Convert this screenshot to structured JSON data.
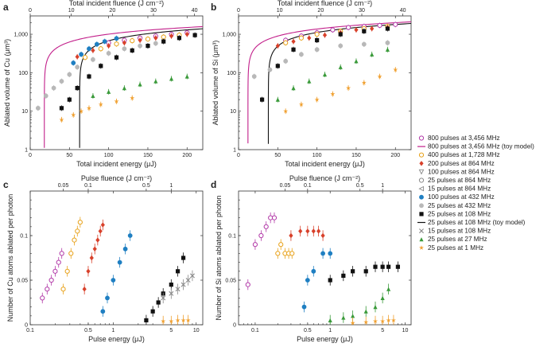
{
  "chart_data": [
    {
      "panel": "a",
      "type": "scatter",
      "xlabel": "Total incident energy (μJ)",
      "ylabel": "Ablated volume of Cu (μm³)",
      "top_xlabel": "Total incident fluence (J cm⁻²)",
      "x_scale": "linear",
      "y_scale": "log",
      "xlim": [
        0,
        220
      ],
      "ylim": [
        1,
        3000
      ],
      "top_xlim": [
        0,
        42
      ],
      "x_ticks": [
        0,
        50,
        100,
        150,
        200
      ],
      "y_ticks": [
        1,
        10,
        100,
        1000
      ],
      "y_tick_labels": [
        "1",
        "10",
        "100",
        "1,000"
      ],
      "top_ticks": [
        0,
        10,
        20,
        30,
        40
      ],
      "series": [
        {
          "name": "800 pulses at 3,456 MHz",
          "x": [
            100,
            120,
            140,
            160,
            180,
            200
          ],
          "y": [
            600,
            700,
            800,
            900,
            1000,
            1100
          ]
        },
        {
          "name": "400 pulses at 1,728 MHz",
          "x": [
            70,
            90,
            110,
            130,
            150,
            170,
            190
          ],
          "y": [
            250,
            420,
            560,
            680,
            750,
            850,
            950
          ]
        },
        {
          "name": "200 pulses at 864 MHz",
          "x": [
            60,
            80,
            100,
            120,
            140,
            160,
            180,
            200
          ],
          "y": [
            260,
            380,
            500,
            600,
            700,
            800,
            900,
            1000
          ]
        },
        {
          "name": "100 pulses at 432 MHz",
          "x": [
            55,
            65,
            75,
            85,
            95,
            110
          ],
          "y": [
            180,
            300,
            420,
            550,
            650,
            780
          ]
        },
        {
          "name": "25 pulses at 108 MHz",
          "x": [
            40,
            50,
            60,
            75,
            90,
            110,
            130,
            150,
            170,
            190,
            210
          ],
          "y": [
            12,
            20,
            40,
            80,
            150,
            250,
            380,
            500,
            650,
            800,
            950
          ]
        },
        {
          "name": "25 pulses at 432 MHz",
          "x": [
            10,
            20,
            30,
            40,
            50,
            60,
            80,
            100,
            120,
            140,
            160
          ],
          "y": [
            12,
            25,
            40,
            60,
            90,
            140,
            220,
            320,
            420,
            500,
            580
          ]
        },
        {
          "name": "25 pulses at 27 MHz",
          "x": [
            80,
            100,
            120,
            140,
            160,
            180,
            200
          ],
          "y": [
            25,
            32,
            40,
            50,
            60,
            70,
            80
          ]
        },
        {
          "name": "25 pulses at 1 MHz",
          "x": [
            40,
            55,
            65,
            75,
            90,
            110,
            130
          ],
          "y": [
            6,
            8,
            10,
            12,
            15,
            18,
            22
          ]
        }
      ],
      "models": [
        {
          "name": "800 pulses at 3,456 MHz (toy model)",
          "threshold": 18,
          "ref_x": 200,
          "ref_y": 1500
        },
        {
          "name": "25 pulses at 108 MHz (toy model)",
          "threshold": 63,
          "ref_x": 200,
          "ref_y": 1300
        }
      ]
    },
    {
      "panel": "b",
      "type": "scatter",
      "xlabel": "Total incident energy (μJ)",
      "ylabel": "Ablated volume of Si (μm³)",
      "top_xlabel": "Total incident fluence (J cm⁻²)",
      "x_scale": "linear",
      "y_scale": "log",
      "xlim": [
        0,
        220
      ],
      "ylim": [
        1,
        3000
      ],
      "top_xlim": [
        0,
        42
      ],
      "x_ticks": [
        0,
        50,
        100,
        150,
        200
      ],
      "y_ticks": [
        1,
        10,
        100,
        1000
      ],
      "y_tick_labels": [
        "1",
        "10",
        "100",
        "1,000"
      ],
      "top_ticks": [
        0,
        10,
        20,
        30,
        40
      ],
      "series": [
        {
          "name": "800 pulses at 3,456 MHz",
          "x": [
            60,
            80,
            100,
            120,
            140,
            160,
            180,
            200
          ],
          "y": [
            700,
            900,
            1100,
            1300,
            1500,
            1600,
            1700,
            1800
          ]
        },
        {
          "name": "400 pulses at 1,728 MHz",
          "x": [
            60,
            80,
            100,
            130,
            160,
            190
          ],
          "y": [
            600,
            800,
            1000,
            1200,
            1400,
            1600
          ]
        },
        {
          "name": "200 pulses at 864 MHz",
          "x": [
            50,
            70,
            90,
            110,
            130,
            150,
            170,
            190
          ],
          "y": [
            500,
            650,
            800,
            950,
            1100,
            1300,
            1400,
            1500
          ]
        },
        {
          "name": "25 pulses at 108 MHz",
          "x": [
            30,
            50,
            70,
            100,
            130,
            160,
            190
          ],
          "y": [
            20,
            150,
            400,
            700,
            1000,
            1200,
            1400
          ]
        },
        {
          "name": "25 pulses at 432 MHz",
          "x": [
            20,
            40,
            60,
            80,
            100,
            130,
            160,
            190
          ],
          "y": [
            80,
            120,
            200,
            300,
            400,
            500,
            550,
            600
          ]
        },
        {
          "name": "25 pulses at 27 MHz",
          "x": [
            50,
            70,
            90,
            110,
            130,
            150,
            170,
            190
          ],
          "y": [
            20,
            40,
            60,
            90,
            140,
            200,
            300,
            400
          ]
        },
        {
          "name": "25 pulses at 1 MHz",
          "x": [
            60,
            80,
            100,
            120,
            140,
            160,
            180,
            200
          ],
          "y": [
            10,
            15,
            20,
            28,
            40,
            55,
            80,
            120
          ]
        }
      ],
      "models": [
        {
          "name": "800 pulses at 3,456 MHz (toy model)",
          "threshold": 12,
          "ref_x": 200,
          "ref_y": 2000
        },
        {
          "name": "25 pulses at 108 MHz (toy model)",
          "threshold": 38,
          "ref_x": 200,
          "ref_y": 1800
        }
      ]
    },
    {
      "panel": "c",
      "type": "scatter",
      "xlabel": "Pulse energy (μJ)",
      "ylabel": "Number of Cu atoms ablated per photon",
      "top_xlabel": "Pulse fluence (J cm⁻²)",
      "x_scale": "log",
      "y_scale": "linear",
      "xlim": [
        0.1,
        12
      ],
      "ylim": [
        0,
        0.15
      ],
      "x_ticks": [
        0.1,
        0.5,
        1,
        5,
        10
      ],
      "x_tick_labels": [
        "0.1",
        "0.5",
        "1",
        "5",
        "10"
      ],
      "y_ticks": [
        0,
        0.05,
        0.1
      ],
      "y_tick_labels": [
        "0",
        "0.05",
        "0.1"
      ],
      "top_ticks": [
        0.05,
        0.1,
        0.5,
        1
      ],
      "top_tick_labels": [
        "0.05",
        "0.1",
        "0.5",
        "1"
      ],
      "fluence_per_energy": 0.2,
      "series": [
        {
          "name": "800 pulses at 3,456 MHz",
          "x": [
            0.14,
            0.16,
            0.18,
            0.2,
            0.22,
            0.24
          ],
          "y": [
            0.03,
            0.04,
            0.05,
            0.06,
            0.07,
            0.08
          ]
        },
        {
          "name": "400 pulses at 1,728 MHz",
          "x": [
            0.25,
            0.28,
            0.31,
            0.34,
            0.37,
            0.4
          ],
          "y": [
            0.04,
            0.06,
            0.08,
            0.095,
            0.105,
            0.115
          ]
        },
        {
          "name": "200 pulses at 864 MHz",
          "x": [
            0.45,
            0.5,
            0.55,
            0.6,
            0.65,
            0.7,
            0.75
          ],
          "y": [
            0.04,
            0.06,
            0.075,
            0.085,
            0.095,
            0.105,
            0.112
          ]
        },
        {
          "name": "100 pulses at 432 MHz",
          "x": [
            0.75,
            0.85,
            1.0,
            1.2,
            1.4,
            1.6
          ],
          "y": [
            0.015,
            0.03,
            0.05,
            0.07,
            0.085,
            0.1
          ]
        },
        {
          "name": "25 pulses at 108 MHz",
          "x": [
            2.5,
            3,
            3.5,
            4,
            5,
            6,
            7
          ],
          "y": [
            0.005,
            0.015,
            0.025,
            0.035,
            0.045,
            0.06,
            0.075
          ]
        },
        {
          "name": "15 pulses at 108 MHz",
          "x": [
            4,
            5,
            6,
            7,
            8,
            9
          ],
          "y": [
            0.03,
            0.035,
            0.04,
            0.045,
            0.05,
            0.055
          ]
        },
        {
          "name": "25 pulses at 1 MHz",
          "x": [
            4,
            5,
            6,
            7,
            8
          ],
          "y": [
            0.004,
            0.004,
            0.005,
            0.005,
            0.005
          ]
        }
      ]
    },
    {
      "panel": "d",
      "type": "scatter",
      "xlabel": "Pulse energy (μJ)",
      "ylabel": "Number of Si atoms ablated per photon",
      "top_xlabel": "Pulse fluence (J cm⁻²)",
      "x_scale": "log",
      "y_scale": "linear",
      "xlim": [
        0.06,
        12
      ],
      "ylim": [
        0,
        0.15
      ],
      "x_ticks": [
        0.1,
        0.5,
        1,
        5,
        10
      ],
      "x_tick_labels": [
        "0.1",
        "0.5",
        "1",
        "5",
        "10"
      ],
      "y_ticks": [
        0,
        0.05,
        0.1
      ],
      "y_tick_labels": [
        "0",
        "0.05",
        "0.1"
      ],
      "top_ticks": [
        0.05,
        0.1,
        0.5,
        1
      ],
      "top_tick_labels": [
        "0.05",
        "0.1",
        "0.5",
        "1"
      ],
      "fluence_per_energy": 0.2,
      "series": [
        {
          "name": "800 pulses at 3,456 MHz",
          "x": [
            0.08,
            0.1,
            0.12,
            0.14,
            0.16,
            0.18
          ],
          "y": [
            0.045,
            0.09,
            0.1,
            0.11,
            0.12,
            0.12
          ]
        },
        {
          "name": "400 pulses at 1,728 MHz",
          "x": [
            0.2,
            0.22,
            0.25,
            0.28,
            0.31
          ],
          "y": [
            0.08,
            0.09,
            0.08,
            0.08,
            0.08
          ]
        },
        {
          "name": "200 pulses at 864 MHz",
          "x": [
            0.3,
            0.4,
            0.5,
            0.6,
            0.7,
            0.8
          ],
          "y": [
            0.1,
            0.105,
            0.105,
            0.105,
            0.105,
            0.1
          ]
        },
        {
          "name": "100 pulses at 432 MHz",
          "x": [
            0.45,
            0.5,
            0.6,
            0.8,
            1.0
          ],
          "y": [
            0.02,
            0.05,
            0.06,
            0.08,
            0.08
          ]
        },
        {
          "name": "25 pulses at 108 MHz",
          "x": [
            1,
            1.5,
            2,
            3,
            4,
            5,
            6,
            8
          ],
          "y": [
            0.05,
            0.055,
            0.06,
            0.06,
            0.065,
            0.065,
            0.065,
            0.065
          ]
        },
        {
          "name": "25 pulses at 27 MHz",
          "x": [
            1,
            1.5,
            2,
            3,
            4,
            5,
            6
          ],
          "y": [
            0.005,
            0.008,
            0.01,
            0.015,
            0.02,
            0.03,
            0.04
          ]
        },
        {
          "name": "25 pulses at 1 MHz",
          "x": [
            2,
            3,
            4,
            5,
            6,
            7
          ],
          "y": [
            0.002,
            0.003,
            0.004,
            0.004,
            0.005,
            0.005
          ]
        }
      ]
    }
  ],
  "legend": {
    "items": [
      {
        "label": "800 pulses at 3,456 MHz",
        "marker": "circle-open",
        "color": "#b23aa8"
      },
      {
        "label": "800 pulses at 3,456 MHz (toy model)",
        "marker": "line",
        "color": "#c21f8a"
      },
      {
        "label": "400 pulses at 1,728 MHz",
        "marker": "circle-open",
        "color": "#e8a21a"
      },
      {
        "label": "200 pulses at 864 MHz",
        "marker": "diamond",
        "color": "#d8402a"
      },
      {
        "label": "100 pulses at 864 MHz",
        "marker": "tri-down-open",
        "color": "#8a8a8a"
      },
      {
        "label": "25 pulses at 864 MHz",
        "marker": "circle-open",
        "color": "#8a8a8a"
      },
      {
        "label": "15 pulses at 864 MHz",
        "marker": "tri-left-open",
        "color": "#8a8a8a"
      },
      {
        "label": "100 pulses at 432 MHz",
        "marker": "circle",
        "color": "#1f7fc2"
      },
      {
        "label": "25 pulses at 432 MHz",
        "marker": "circle",
        "color": "#b8b8b8"
      },
      {
        "label": "25 pulses at 108 MHz",
        "marker": "square",
        "color": "#111111"
      },
      {
        "label": "25 pulses at 108 MHz (toy model)",
        "marker": "line",
        "color": "#111111"
      },
      {
        "label": "15 pulses at 108 MHz",
        "marker": "x",
        "color": "#8a8a8a"
      },
      {
        "label": "25 pulses at 27 MHz",
        "marker": "triangle",
        "color": "#3a9a3a"
      },
      {
        "label": "25 pulses at 1 MHz",
        "marker": "star",
        "color": "#f0a030"
      }
    ]
  }
}
